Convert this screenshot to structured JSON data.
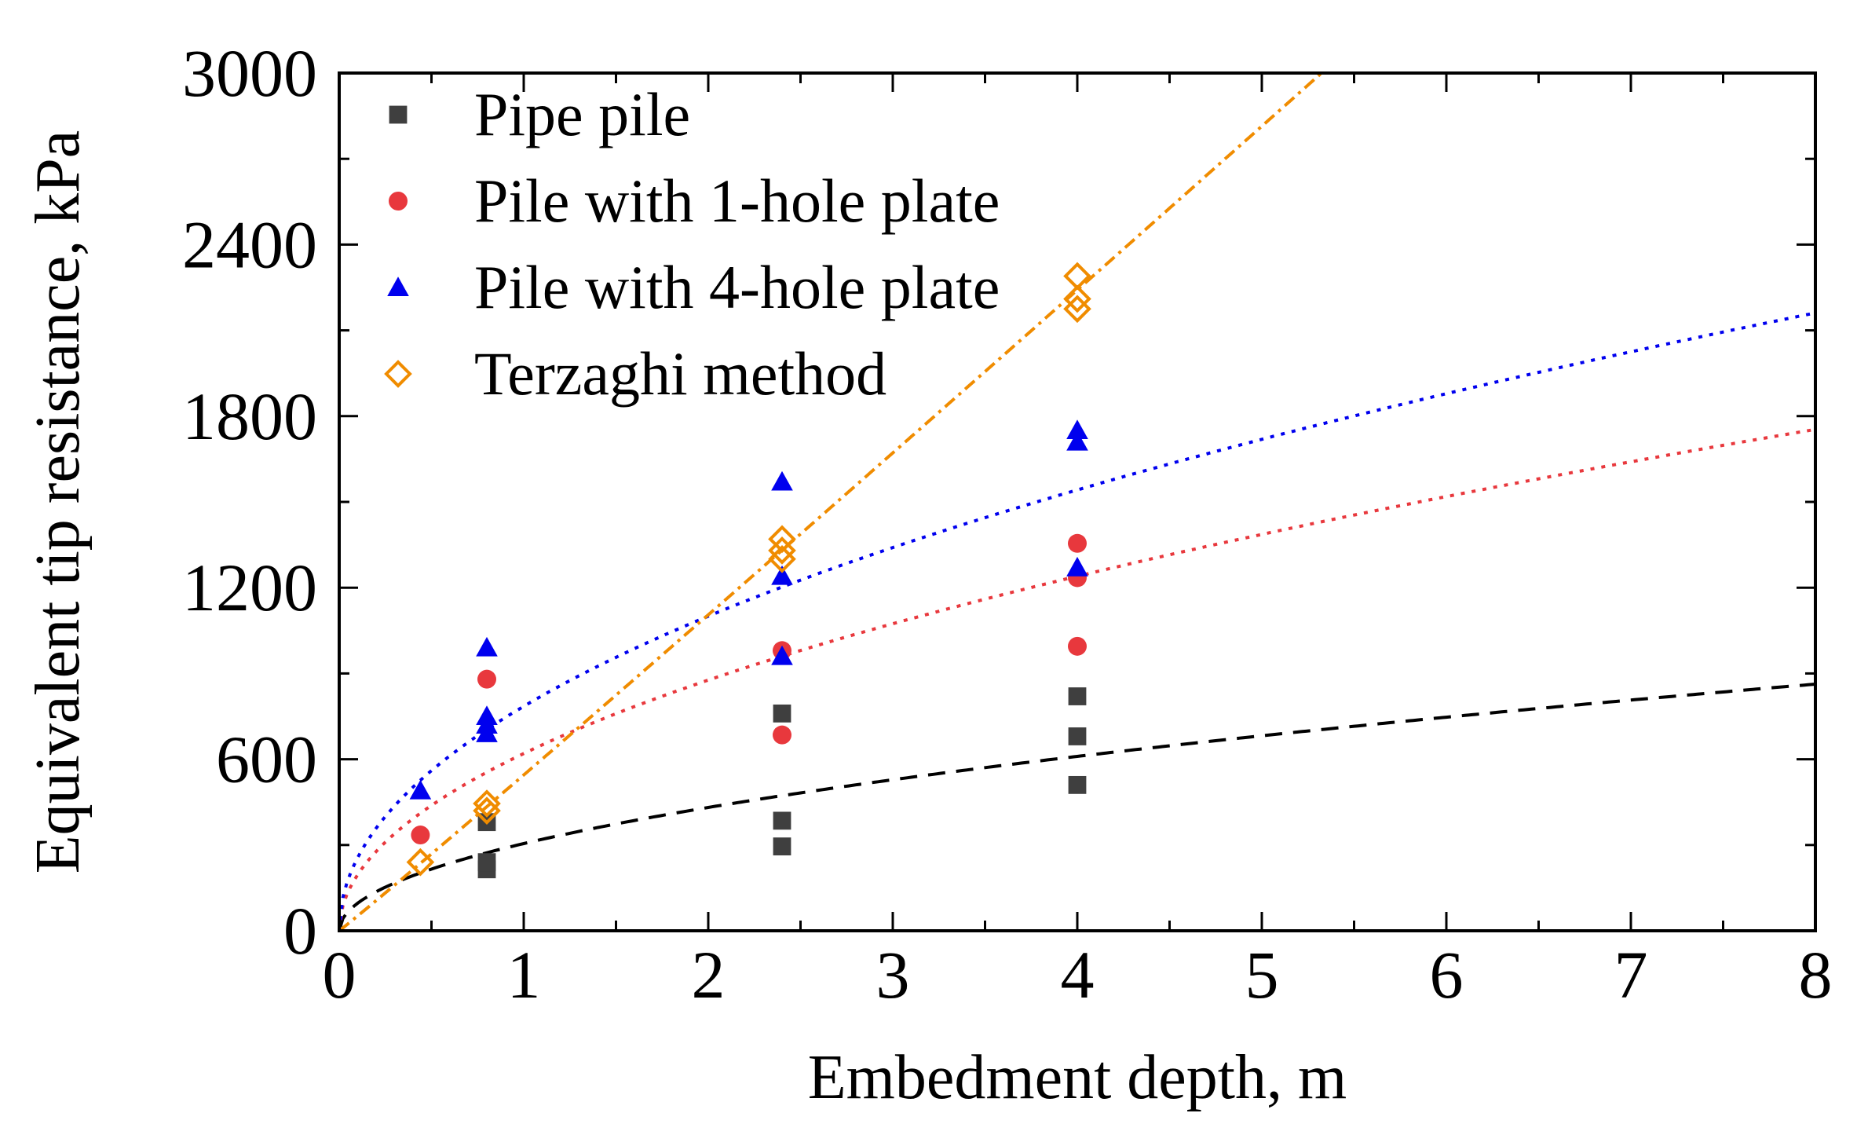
{
  "chart_data": {
    "type": "scatter",
    "title": "",
    "xlabel": "Embedment depth, m",
    "ylabel": "Equivalent tip resistance, kPa",
    "xlim": [
      0,
      8
    ],
    "ylim": [
      0,
      3000
    ],
    "xticks": [
      0,
      1,
      2,
      3,
      4,
      5,
      6,
      7,
      8
    ],
    "yticks": [
      0,
      600,
      1200,
      1800,
      2400,
      3000
    ],
    "legend_position": "top-left",
    "series": [
      {
        "name": "Pipe pile",
        "marker": "square",
        "color": "#3f3f3f",
        "points": [
          [
            0.8,
            380
          ],
          [
            0.8,
            215
          ],
          [
            0.8,
            240
          ],
          [
            2.4,
            760
          ],
          [
            2.4,
            385
          ],
          [
            2.4,
            295
          ],
          [
            4.0,
            820
          ],
          [
            4.0,
            680
          ],
          [
            4.0,
            510
          ]
        ]
      },
      {
        "name": "Pile with 1-hole plate",
        "marker": "circle",
        "color": "#e8383d",
        "points": [
          [
            0.44,
            335
          ],
          [
            0.8,
            880
          ],
          [
            2.4,
            980
          ],
          [
            2.4,
            685
          ],
          [
            4.0,
            1355
          ],
          [
            4.0,
            1235
          ],
          [
            4.0,
            995
          ]
        ]
      },
      {
        "name": "Pile with 4-hole plate",
        "marker": "triangle",
        "color": "#0000ee",
        "points": [
          [
            0.44,
            490
          ],
          [
            0.8,
            990
          ],
          [
            0.8,
            750
          ],
          [
            0.8,
            720
          ],
          [
            0.8,
            690
          ],
          [
            2.4,
            1570
          ],
          [
            2.4,
            1240
          ],
          [
            2.4,
            960
          ],
          [
            4.0,
            1750
          ],
          [
            4.0,
            1710
          ],
          [
            4.0,
            1270
          ]
        ]
      },
      {
        "name": "Terzaghi method",
        "marker": "open-diamond",
        "color": "#f08c00",
        "points": [
          [
            0.44,
            240
          ],
          [
            0.8,
            445
          ],
          [
            0.8,
            420
          ],
          [
            2.4,
            1370
          ],
          [
            2.4,
            1330
          ],
          [
            2.4,
            1300
          ],
          [
            4.0,
            2290
          ],
          [
            4.0,
            2210
          ],
          [
            4.0,
            2175
          ]
        ]
      }
    ],
    "trendlines": [
      {
        "name": "Pipe pile fit",
        "color": "#000000",
        "style": "dashed",
        "a": 305,
        "b": 0.5
      },
      {
        "name": "Pile with 1-hole plate fit",
        "color": "#e8383d",
        "style": "dotted",
        "a": 620,
        "b": 0.5
      },
      {
        "name": "Pile with 4-hole plate fit",
        "color": "#0000ee",
        "style": "dotted",
        "a": 785,
        "b": 0.487
      },
      {
        "name": "Terzaghi method fit",
        "color": "#f08c00",
        "style": "dash-dot",
        "a": 545,
        "b": 1.02
      }
    ]
  }
}
